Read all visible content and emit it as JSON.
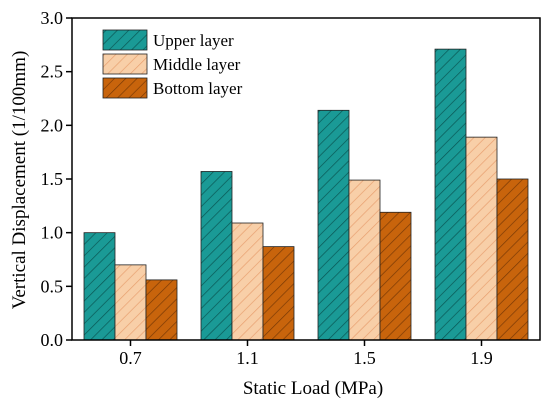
{
  "chart_data": {
    "type": "bar",
    "title": "",
    "xlabel": "Static Load (MPa)",
    "ylabel": "Vertical Displacement (1/100mm)",
    "categories": [
      "0.7",
      "1.1",
      "1.5",
      "1.9"
    ],
    "ylim": [
      0,
      3.0
    ],
    "yticks": [
      "0.0",
      "0.5",
      "1.0",
      "1.5",
      "2.0",
      "2.5",
      "3.0"
    ],
    "grid": false,
    "legend_position": "top-left",
    "series": [
      {
        "name": "Upper layer",
        "values": [
          1.0,
          1.57,
          2.14,
          2.71
        ],
        "color": "#1a9a96",
        "hatch": "#0a5754"
      },
      {
        "name": "Middle layer",
        "values": [
          0.7,
          1.09,
          1.49,
          1.89
        ],
        "color": "#f8cfa8",
        "hatch": "#e8a070"
      },
      {
        "name": "Bottom layer",
        "values": [
          0.56,
          0.87,
          1.19,
          1.5
        ],
        "color": "#c8640c",
        "hatch": "#7a3a05"
      }
    ]
  }
}
